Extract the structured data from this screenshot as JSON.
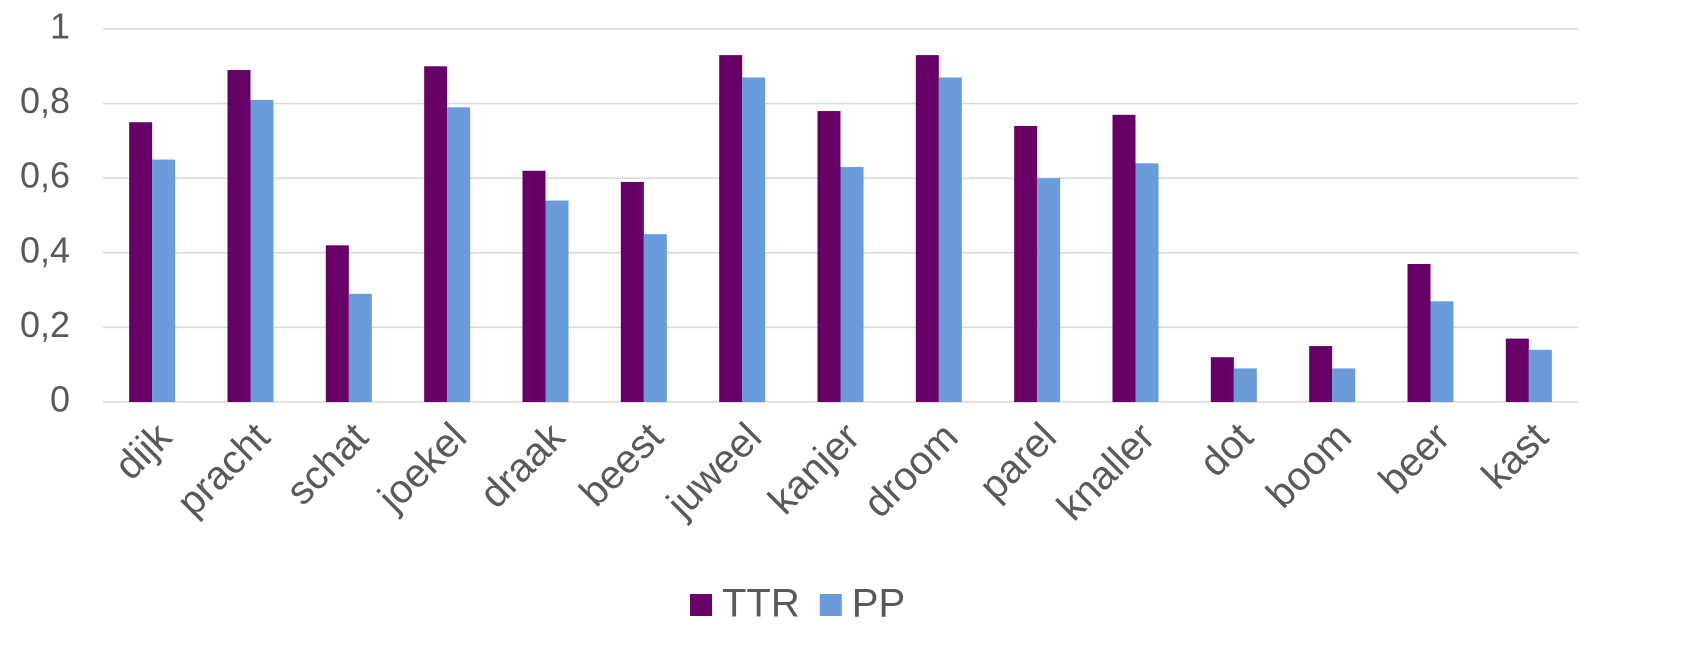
{
  "chart_data": {
    "type": "bar",
    "categories": [
      "dijk",
      "pracht",
      "schat",
      "joekel",
      "draak",
      "beest",
      "juweel",
      "kanjer",
      "droom",
      "parel",
      "knaller",
      "dot",
      "boom",
      "beer",
      "kast"
    ],
    "series": [
      {
        "name": "TTR",
        "color": "#660066",
        "values": [
          0.75,
          0.89,
          0.42,
          0.9,
          0.62,
          0.59,
          0.93,
          0.78,
          0.93,
          0.74,
          0.77,
          0.12,
          0.15,
          0.37,
          0.17
        ]
      },
      {
        "name": "PP",
        "color": "#6a9bdb",
        "values": [
          0.65,
          0.81,
          0.29,
          0.79,
          0.54,
          0.45,
          0.87,
          0.63,
          0.87,
          0.6,
          0.64,
          0.09,
          0.09,
          0.27,
          0.14
        ]
      }
    ],
    "ylim": [
      0,
      1
    ],
    "yticks": [
      0,
      {
        "value": 0.2,
        "label": "0,2"
      },
      {
        "value": 0.4,
        "label": "0,4"
      },
      {
        "value": 0.6,
        "label": "0,6"
      },
      {
        "value": 0.8,
        "label": "0,8"
      },
      1
    ],
    "grid": true,
    "legend": "bottom"
  }
}
